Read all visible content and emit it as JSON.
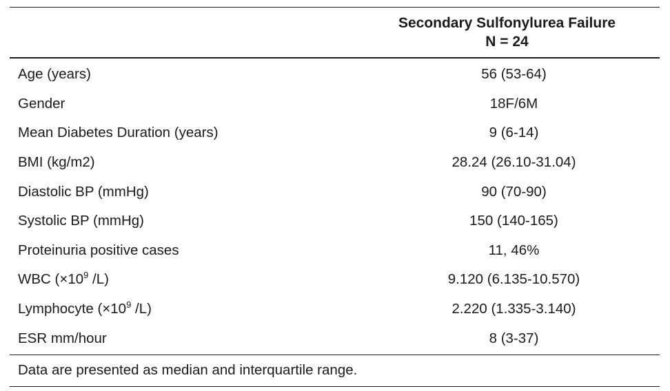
{
  "table": {
    "header": {
      "group_label": "Secondary Sulfonylurea Failure",
      "n_label": "N = 24"
    },
    "rows": [
      {
        "label": "Age (years)",
        "value": "56 (53-64)"
      },
      {
        "label": "Gender",
        "value": "18F/6M"
      },
      {
        "label": "Mean Diabetes Duration (years)",
        "value": "9 (6-14)"
      },
      {
        "label": "BMI (kg/m2)",
        "value": "28.24 (26.10-31.04)"
      },
      {
        "label": "Diastolic BP (mmHg)",
        "value": "90 (70-90)"
      },
      {
        "label": "Systolic BP (mmHg)",
        "value": "150 (140-165)"
      },
      {
        "label": "Proteinuria positive cases",
        "value": "11, 46%"
      },
      {
        "label_prefix": "WBC (×10",
        "label_sup": "9",
        "label_suffix": " /L)",
        "value": "9.120 (6.135-10.570)"
      },
      {
        "label_prefix": "Lymphocyte (×10",
        "label_sup": "9",
        "label_suffix": " /L)",
        "value": "2.220 (1.335-3.140)"
      },
      {
        "label": "ESR mm/hour",
        "value": "8 (3-37)"
      }
    ],
    "footnote": "Data are presented as median and interquartile range."
  }
}
